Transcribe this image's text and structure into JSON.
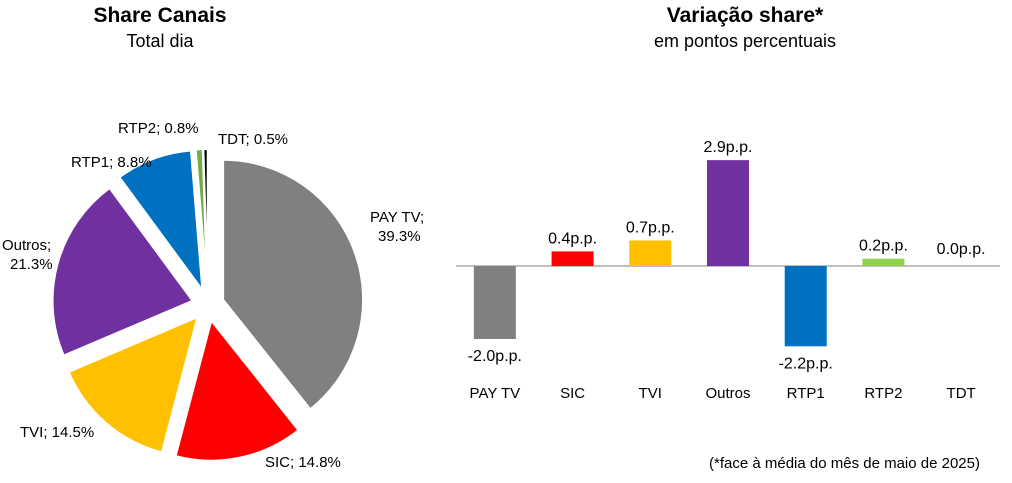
{
  "footnote": "(*face à média do mês de maio de 2025)",
  "chart_data": [
    {
      "type": "pie",
      "title": "Share Canais",
      "subtitle": "Total dia",
      "slices": [
        {
          "label": "PAY TV",
          "value": 39.3,
          "text": "PAY TV; 39.3%",
          "color": "#808080"
        },
        {
          "label": "SIC",
          "value": 14.8,
          "text": "SIC; 14.8%",
          "color": "#FF0000"
        },
        {
          "label": "TVI",
          "value": 14.5,
          "text": "TVI; 14.5%",
          "color": "#FFC000"
        },
        {
          "label": "Outros",
          "value": 21.3,
          "text": "Outros; 21.3%",
          "color": "#7030A0"
        },
        {
          "label": "RTP1",
          "value": 8.8,
          "text": "RTP1; 8.8%",
          "color": "#0070C0"
        },
        {
          "label": "RTP2",
          "value": 0.8,
          "text": "RTP2; 0.8%",
          "color": "#70AD47"
        },
        {
          "label": "TDT",
          "value": 0.5,
          "text": "TDT; 0.5%",
          "color": "#000000"
        }
      ]
    },
    {
      "type": "bar",
      "title": "Variação share*",
      "subtitle": "em pontos percentuais",
      "categories": [
        "PAY TV",
        "SIC",
        "TVI",
        "Outros",
        "RTP1",
        "RTP2",
        "TDT"
      ],
      "values": [
        -2.0,
        0.4,
        0.7,
        2.9,
        -2.2,
        0.2,
        0.0
      ],
      "data_labels": [
        "-2.0p.p.",
        "0.4p.p.",
        "0.7p.p.",
        "2.9p.p.",
        "-2.2p.p.",
        "0.2p.p.",
        "0.0p.p."
      ],
      "colors": [
        "#808080",
        "#FF0000",
        "#FFC000",
        "#7030A0",
        "#0070C0",
        "#92D050",
        "#000000"
      ]
    }
  ]
}
